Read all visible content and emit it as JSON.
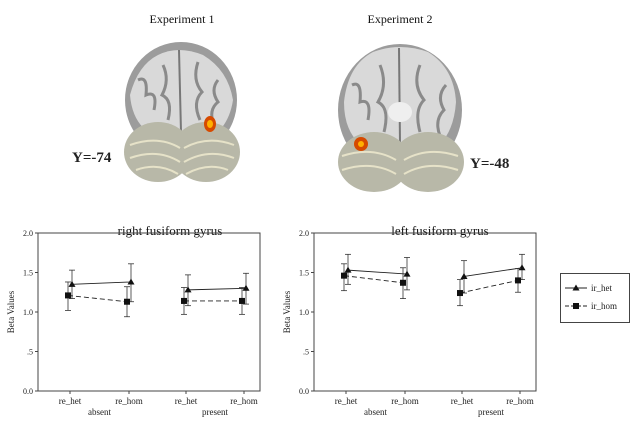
{
  "brain_panels": [
    {
      "title": "Experiment 1",
      "slice_label": "Y=-74"
    },
    {
      "title": "Experiment 2",
      "slice_label": "Y=-48"
    }
  ],
  "chart_data": [
    {
      "type": "line",
      "title": "right fusiform gyrus",
      "ylabel": "Beta Values",
      "xlabel": "",
      "ylim": [
        0,
        2.0
      ],
      "yticks": [
        "0.0",
        ".5",
        "1.0",
        "1.5",
        "2.0"
      ],
      "categories": [
        "re_het",
        "re_hom",
        "re_het",
        "re_hom"
      ],
      "groups": [
        "absent",
        "present"
      ],
      "series": [
        {
          "name": "ir_het",
          "marker": "triangle",
          "line": "solid",
          "values": [
            1.35,
            1.38,
            1.28,
            1.3
          ],
          "err_low": [
            1.17,
            1.13,
            1.08,
            1.1
          ],
          "err_high": [
            1.53,
            1.61,
            1.47,
            1.49
          ]
        },
        {
          "name": "ir_hom",
          "marker": "square",
          "line": "dashed",
          "values": [
            1.21,
            1.13,
            1.14,
            1.14
          ],
          "err_low": [
            1.02,
            0.94,
            0.97,
            0.97
          ],
          "err_high": [
            1.38,
            1.32,
            1.31,
            1.31
          ]
        }
      ]
    },
    {
      "type": "line",
      "title": "left fusiform gyrus",
      "ylabel": "Beta Values",
      "xlabel": "",
      "ylim": [
        0,
        2.0
      ],
      "yticks": [
        "0.0",
        ".5",
        "1.0",
        "1.5",
        "2.0"
      ],
      "categories": [
        "re_het",
        "re_hom",
        "re_het",
        "re_hom"
      ],
      "groups": [
        "absent",
        "present"
      ],
      "series": [
        {
          "name": "ir_het",
          "marker": "triangle",
          "line": "solid",
          "values": [
            1.53,
            1.48,
            1.45,
            1.56
          ],
          "err_low": [
            1.35,
            1.28,
            1.24,
            1.41
          ],
          "err_high": [
            1.73,
            1.69,
            1.65,
            1.73
          ]
        },
        {
          "name": "ir_hom",
          "marker": "square",
          "line": "dashed",
          "values": [
            1.46,
            1.37,
            1.24,
            1.4
          ],
          "err_low": [
            1.27,
            1.17,
            1.08,
            1.25
          ],
          "err_high": [
            1.61,
            1.56,
            1.41,
            1.55
          ]
        }
      ]
    }
  ],
  "legend": [
    {
      "name": "ir_het",
      "marker": "triangle",
      "line": "solid"
    },
    {
      "name": "ir_hom",
      "marker": "square",
      "line": "dashed"
    }
  ]
}
